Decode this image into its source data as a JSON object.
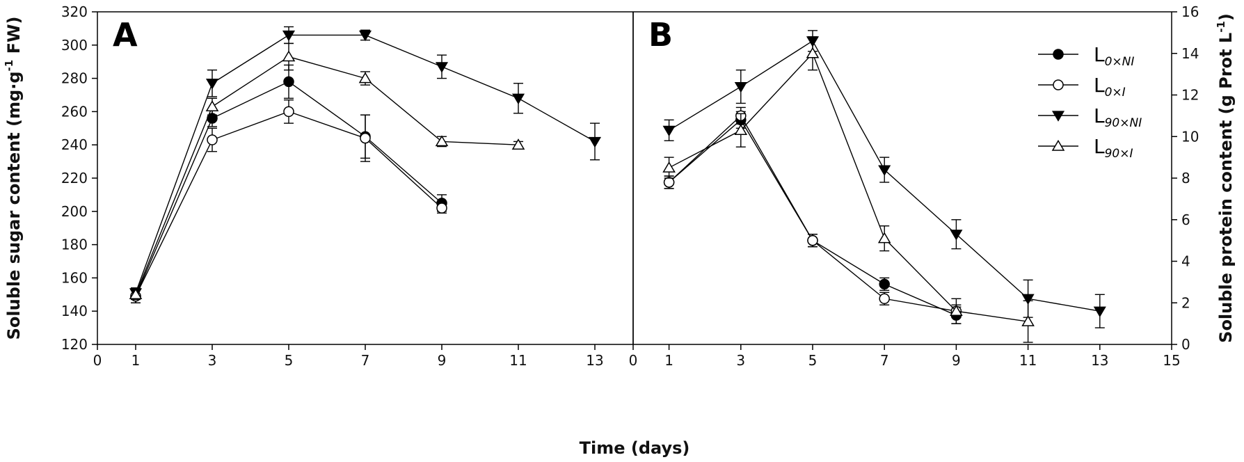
{
  "chart_data": {
    "xlabel": "Time (days)",
    "legend": {
      "placement": "top-right of panel B",
      "entries": [
        {
          "id": "L0xNI",
          "main": "L",
          "sub": "0×NI",
          "marker": "filled-circle"
        },
        {
          "id": "L0xI",
          "main": "L",
          "sub": "0×I",
          "marker": "open-circle"
        },
        {
          "id": "L90xNI",
          "main": "L",
          "sub": "90×NI",
          "marker": "filled-triangle-down"
        },
        {
          "id": "L90xI",
          "main": "L",
          "sub": "90×I",
          "marker": "open-triangle-up"
        }
      ]
    },
    "panels": [
      {
        "letter": "A",
        "type": "line",
        "ylabel": "Soluble sugar content (mg·g⁻¹ FW)",
        "ylabel_parts": [
          "Soluble sugar content (mg·g",
          "-1",
          " FW)"
        ],
        "xlim": [
          0,
          14
        ],
        "ylim": [
          120,
          320
        ],
        "xticks": [
          0,
          1,
          3,
          5,
          7,
          9,
          11,
          13
        ],
        "yticks": [
          120,
          140,
          160,
          180,
          200,
          220,
          240,
          260,
          280,
          300,
          320
        ],
        "series": [
          {
            "id": "L0xNI",
            "x": [
              1,
              3,
              5,
              7,
              9
            ],
            "y": [
              149,
              256,
              278,
              245,
              205
            ],
            "err": [
              4,
              5,
              10,
              13,
              5
            ]
          },
          {
            "id": "L0xI",
            "x": [
              1,
              3,
              5,
              7,
              9
            ],
            "y": [
              149,
              243,
              260,
              244,
              202
            ],
            "err": [
              4,
              7,
              7,
              14,
              3
            ]
          },
          {
            "id": "L90xNI",
            "x": [
              1,
              3,
              5,
              7,
              9,
              11,
              13
            ],
            "y": [
              151,
              277,
              306,
              306,
              287,
              268,
              242
            ],
            "err": [
              3,
              8,
              5,
              3,
              7,
              9,
              11
            ]
          },
          {
            "id": "L90xI",
            "x": [
              1,
              3,
              5,
              7,
              9,
              11
            ],
            "y": [
              150,
              263,
              293,
              280,
              242,
              240
            ],
            "err": [
              3,
              5,
              8,
              4,
              3,
              2
            ]
          }
        ]
      },
      {
        "letter": "B",
        "type": "line",
        "ylabel": "Soluble protein content (g Prot L⁻¹)",
        "ylabel_parts": [
          "Soluble protein content (g Prot L",
          "-1",
          ")"
        ],
        "xlim": [
          0,
          15
        ],
        "ylim": [
          0,
          16
        ],
        "xticks": [
          0,
          1,
          3,
          5,
          7,
          9,
          11,
          13,
          15
        ],
        "yticks": [
          0,
          2,
          4,
          6,
          8,
          10,
          12,
          14,
          16
        ],
        "series": [
          {
            "id": "L0xNI",
            "x": [
              1,
              3,
              5,
              7,
              9
            ],
            "y": [
              7.8,
              10.8,
              5.0,
              2.9,
              1.4
            ],
            "err": [
              0.3,
              0.4,
              0.3,
              0.3,
              0.4
            ]
          },
          {
            "id": "L0xI",
            "x": [
              1,
              3,
              5,
              7,
              9
            ],
            "y": [
              7.8,
              11.0,
              5.0,
              2.2,
              1.6
            ],
            "err": [
              0.3,
              0.4,
              0.3,
              0.3,
              0.3
            ]
          },
          {
            "id": "L90xNI",
            "x": [
              1,
              3,
              5,
              7,
              9,
              11,
              13
            ],
            "y": [
              10.3,
              12.4,
              14.6,
              8.4,
              5.3,
              2.2,
              1.6
            ],
            "err": [
              0.5,
              0.8,
              0.5,
              0.6,
              0.7,
              0.9,
              0.8
            ]
          },
          {
            "id": "L90xI",
            "x": [
              1,
              3,
              5,
              7,
              9,
              11
            ],
            "y": [
              8.5,
              10.3,
              14.0,
              5.1,
              1.6,
              1.1
            ],
            "err": [
              0.5,
              0.8,
              0.8,
              0.6,
              0.6,
              1.0
            ]
          }
        ]
      }
    ]
  }
}
